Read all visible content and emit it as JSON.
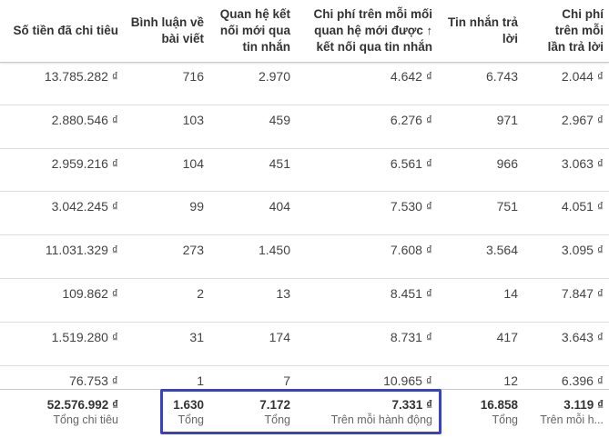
{
  "header": {
    "columns": [
      {
        "lines": [
          "Số tiền đã chi tiêu"
        ]
      },
      {
        "lines": [
          "Bình luận về",
          "bài viết"
        ]
      },
      {
        "lines": [
          "Quan hệ kết",
          "nối mới qua",
          "tin nhắn"
        ]
      },
      {
        "lines": [
          "Chi phí trên mỗi mối",
          "quan hệ mới được",
          "kết nối qua tin nhắn"
        ]
      },
      {
        "lines": [
          "Tin nhắn trả",
          "lời"
        ]
      },
      {
        "lines": [
          "Chi phí",
          "trên mỗi",
          "lần trả lời"
        ]
      }
    ]
  },
  "table": {
    "rows": [
      [
        "13.785.282 ₫",
        "716",
        "2.970",
        "4.642 ₫",
        "6.743",
        "2.044 ₫"
      ],
      [
        "2.880.546 ₫",
        "103",
        "459",
        "6.276 ₫",
        "971",
        "2.967 ₫"
      ],
      [
        "2.959.216 ₫",
        "104",
        "451",
        "6.561 ₫",
        "966",
        "3.063 ₫"
      ],
      [
        "3.042.245 ₫",
        "99",
        "404",
        "7.530 ₫",
        "751",
        "4.051 ₫"
      ],
      [
        "11.031.329 ₫",
        "273",
        "1.450",
        "7.608 ₫",
        "3.564",
        "3.095 ₫"
      ],
      [
        "109.862 ₫",
        "2",
        "13",
        "8.451 ₫",
        "14",
        "7.847 ₫"
      ],
      [
        "1.519.280 ₫",
        "31",
        "174",
        "8.731 ₫",
        "417",
        "3.643 ₫"
      ],
      [
        "76.753 ₫",
        "1",
        "7",
        "10.965 ₫",
        "12",
        "6.396 ₫"
      ]
    ]
  },
  "totals": [
    {
      "value": "52.576.992 ₫",
      "label": "Tổng chi tiêu"
    },
    {
      "value": "1.630",
      "label": "Tổng"
    },
    {
      "value": "7.172",
      "label": "Tổng"
    },
    {
      "value": "7.331 ₫",
      "label": "Trên mỗi hành động"
    },
    {
      "value": "16.858",
      "label": "Tổng"
    },
    {
      "value": "3.119 ₫",
      "label": "Trên mỗi h..."
    }
  ]
}
